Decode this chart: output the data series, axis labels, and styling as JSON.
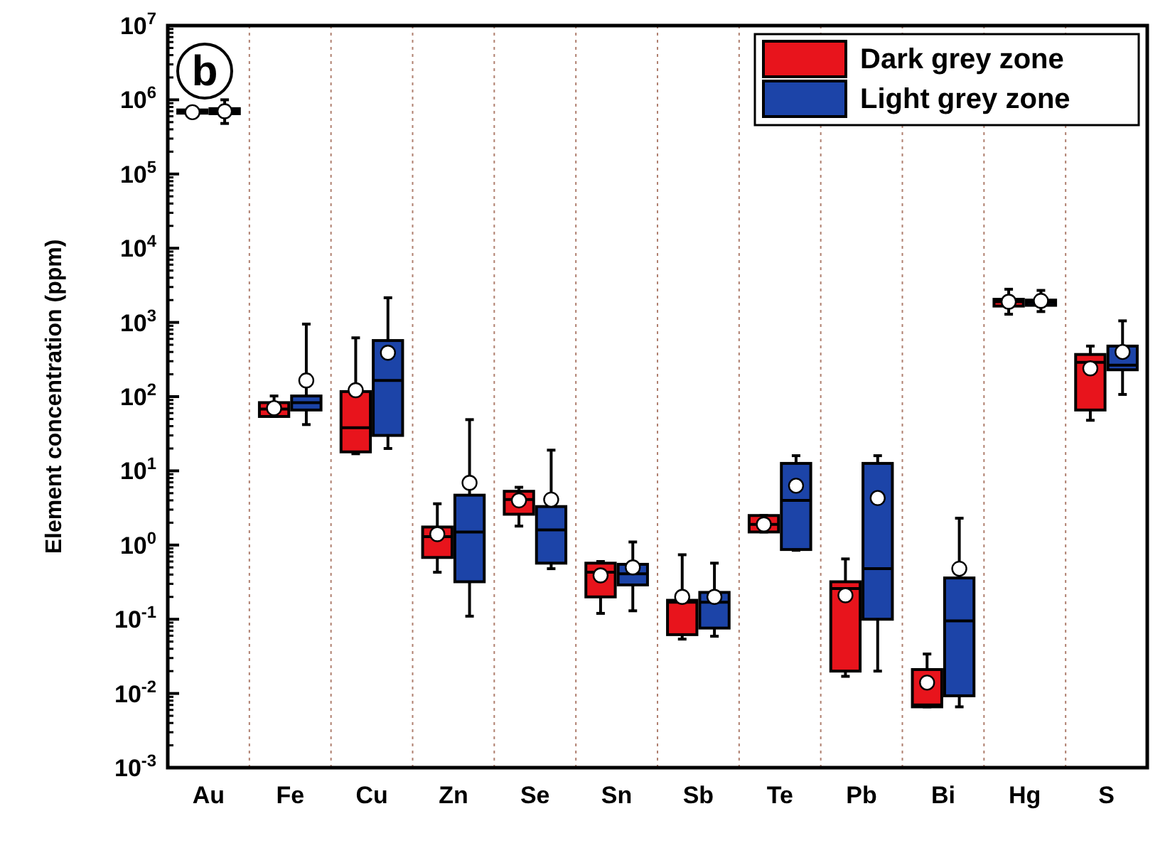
{
  "chart_data": {
    "type": "box",
    "ylabel": "Element concentration (ppm)",
    "annotations": [
      "b"
    ],
    "categories": [
      "Au",
      "Fe",
      "Cu",
      "Zn",
      "Se",
      "Sn",
      "Sb",
      "Te",
      "Pb",
      "Bi",
      "Hg",
      "S"
    ],
    "log": true,
    "ylim": [
      0.001,
      10000000
    ],
    "yticks": [
      {
        "value": 0.001,
        "label": "10$^{-3}$"
      },
      {
        "value": 0.01,
        "label": "10$^{-2}$"
      },
      {
        "value": 0.1,
        "label": "10$^{-1}$"
      },
      {
        "value": 1,
        "label": "10$^{0}$"
      },
      {
        "value": 10,
        "label": "10$^{1}$"
      },
      {
        "value": 100,
        "label": "10$^{2}$"
      },
      {
        "value": 1000,
        "label": "10$^{3}$"
      },
      {
        "value": 10000,
        "label": "10$^{4}$"
      },
      {
        "value": 100000,
        "label": "10$^{5}$"
      },
      {
        "value": 1000000,
        "label": "10$^{6}$"
      },
      {
        "value": 10000000,
        "label": "10$^{7}$"
      }
    ],
    "grid": "x",
    "legend": "top right",
    "marker": "circle",
    "series": [
      {
        "name": "Dark grey zone",
        "color": "#e8141c",
        "boxes": [
          {
            "low": 660000,
            "q1": 660000,
            "median": 700000,
            "q3": 730000,
            "high": 750000,
            "mean": 680000
          },
          {
            "low": 54,
            "q1": 54,
            "median": 68,
            "q3": 83,
            "high": 102,
            "mean": 70
          },
          {
            "low": 17,
            "q1": 18,
            "median": 38,
            "q3": 117,
            "high": 620,
            "mean": 122
          },
          {
            "low": 0.43,
            "q1": 0.68,
            "median": 1.3,
            "q3": 1.75,
            "high": 3.6,
            "mean": 1.4
          },
          {
            "low": 1.8,
            "q1": 2.6,
            "median": 4.1,
            "q3": 5.3,
            "high": 6,
            "mean": 4
          },
          {
            "low": 0.12,
            "q1": 0.2,
            "median": 0.43,
            "q3": 0.57,
            "high": 0.6,
            "mean": 0.39
          },
          {
            "low": 0.054,
            "q1": 0.062,
            "median": 0.17,
            "q3": 0.18,
            "high": 0.74,
            "mean": 0.2
          },
          {
            "low": 1.5,
            "q1": 1.5,
            "median": 1.9,
            "q3": 2.5,
            "high": 2.5,
            "mean": 1.9
          },
          {
            "low": 0.017,
            "q1": 0.02,
            "median": 0.26,
            "q3": 0.32,
            "high": 0.65,
            "mean": 0.21
          },
          {
            "low": 0.0066,
            "q1": 0.0066,
            "median": 0.007,
            "q3": 0.021,
            "high": 0.034,
            "mean": 0.014
          },
          {
            "low": 1290,
            "q1": 1660,
            "median": 1900,
            "q3": 2050,
            "high": 2800,
            "mean": 1900
          },
          {
            "low": 48,
            "q1": 66,
            "median": 290,
            "q3": 370,
            "high": 480,
            "mean": 240
          }
        ]
      },
      {
        "name": "Light grey zone",
        "color": "#1c44a8",
        "boxes": [
          {
            "low": 480000,
            "q1": 650000,
            "median": 700000,
            "q3": 760000,
            "high": 1000000,
            "mean": 700000
          },
          {
            "low": 42,
            "q1": 66,
            "median": 83,
            "q3": 102,
            "high": 950,
            "mean": 165
          },
          {
            "low": 20,
            "q1": 30,
            "median": 165,
            "q3": 570,
            "high": 2150,
            "mean": 390
          },
          {
            "low": 0.11,
            "q1": 0.32,
            "median": 1.5,
            "q3": 4.7,
            "high": 49,
            "mean": 6.9
          },
          {
            "low": 0.48,
            "q1": 0.57,
            "median": 1.6,
            "q3": 3.3,
            "high": 19,
            "mean": 4.1
          },
          {
            "low": 0.13,
            "q1": 0.29,
            "median": 0.41,
            "q3": 0.55,
            "high": 1.1,
            "mean": 0.5
          },
          {
            "low": 0.059,
            "q1": 0.076,
            "median": 0.17,
            "q3": 0.23,
            "high": 0.57,
            "mean": 0.2
          },
          {
            "low": 0.85,
            "q1": 0.87,
            "median": 4,
            "q3": 12.6,
            "high": 16,
            "mean": 6.3
          },
          {
            "low": 0.02,
            "q1": 0.1,
            "median": 0.48,
            "q3": 12.6,
            "high": 16,
            "mean": 4.3
          },
          {
            "low": 0.0066,
            "q1": 0.0093,
            "median": 0.095,
            "q3": 0.36,
            "high": 2.3,
            "mean": 0.48
          },
          {
            "low": 1400,
            "q1": 1700,
            "median": 1850,
            "q3": 2000,
            "high": 2700,
            "mean": 1950
          },
          {
            "low": 107,
            "q1": 230,
            "median": 265,
            "q3": 480,
            "high": 1050,
            "mean": 400
          }
        ]
      }
    ]
  }
}
